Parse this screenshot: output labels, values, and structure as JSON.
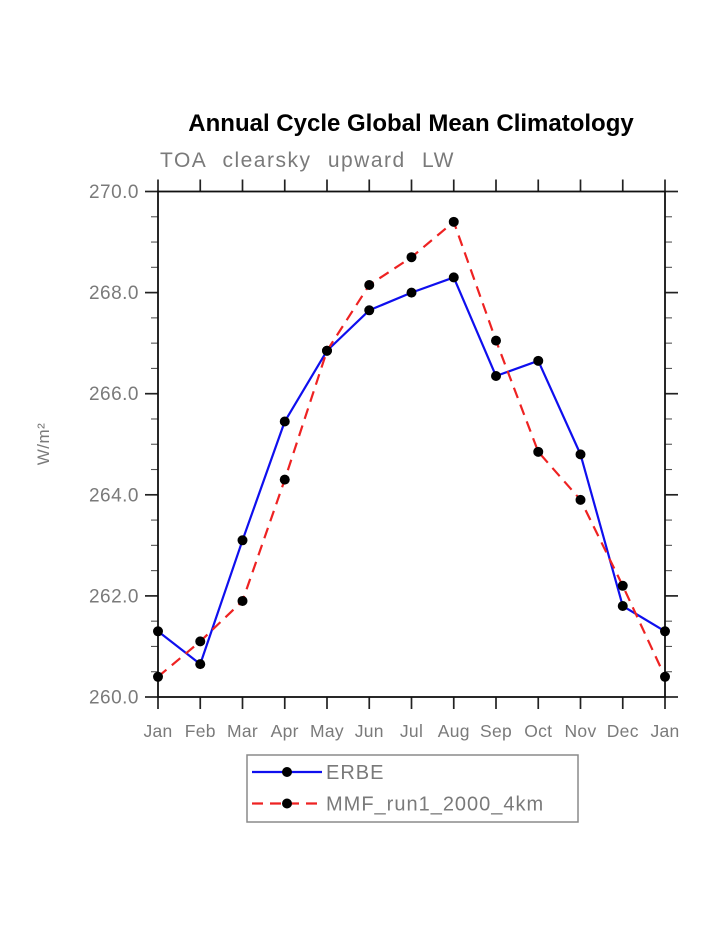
{
  "chart_data": {
    "type": "line",
    "title": "Annual Cycle Global Mean Climatology",
    "subtitle": "TOA clearsky upward LW",
    "ylabel": "W/m²",
    "xlabel": "",
    "categories": [
      "Jan",
      "Feb",
      "Mar",
      "Apr",
      "May",
      "Jun",
      "Jul",
      "Aug",
      "Sep",
      "Oct",
      "Nov",
      "Dec",
      "Jan"
    ],
    "ylim": [
      260.0,
      270.0
    ],
    "ytick_major_interval": 2.0,
    "ytick_minor_interval": 0.5,
    "ytick_labels": [
      "260.0",
      "262.0",
      "264.0",
      "266.0",
      "268.0",
      "270.0"
    ],
    "grid": false,
    "legend_position": "bottom-center",
    "marker": "filled-circle",
    "marker_color": "#000000",
    "series": [
      {
        "name": "ERBE",
        "color": "#0f0fee",
        "line_style": "solid",
        "values": [
          261.3,
          260.65,
          263.1,
          265.45,
          266.85,
          267.65,
          268.0,
          268.3,
          266.35,
          266.65,
          264.8,
          261.8,
          261.3
        ]
      },
      {
        "name": "MMF_run1_2000_4km",
        "color": "#ee2222",
        "line_style": "dashed",
        "values": [
          260.4,
          261.1,
          261.9,
          264.3,
          266.85,
          268.15,
          268.7,
          269.4,
          267.05,
          264.85,
          263.9,
          262.2,
          260.4
        ]
      }
    ]
  }
}
